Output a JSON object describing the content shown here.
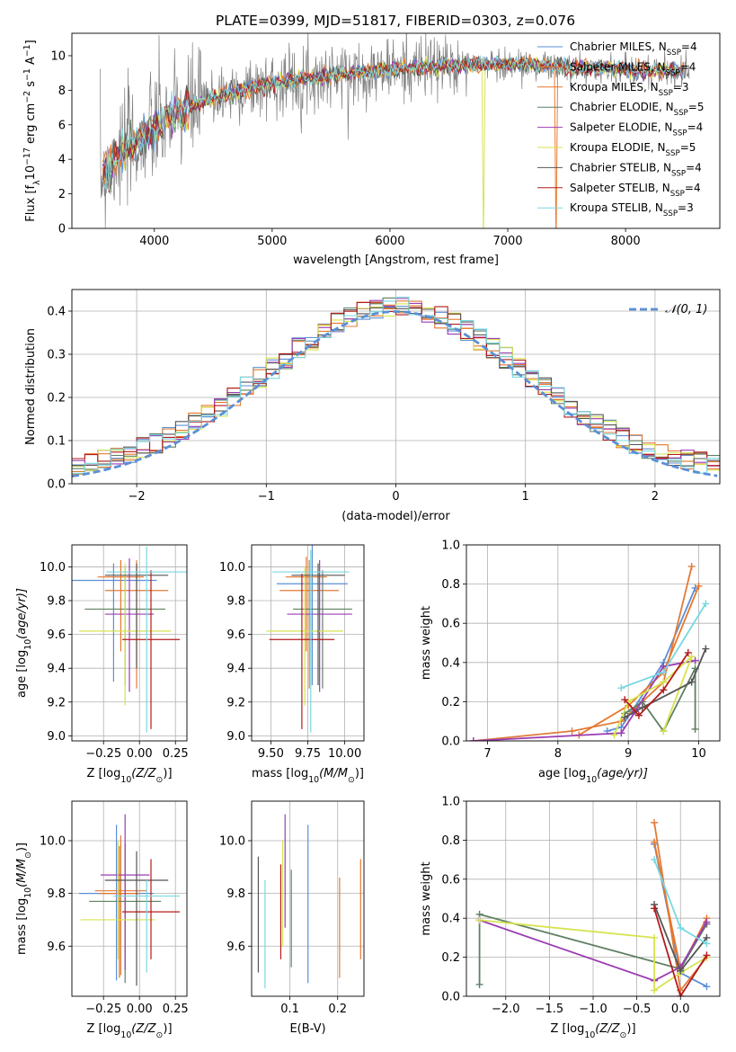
{
  "figure": {
    "title": "PLATE=0399, MJD=51817, FIBERID=0303, z=0.076"
  },
  "models": [
    {
      "label": "Chabrier MILES, N",
      "sub": "SSP",
      "n": "=4",
      "color": "#5b8fd6"
    },
    {
      "label": "Salpeter MILES, N",
      "sub": "SSP",
      "n": "=4",
      "color": "#e07b39"
    },
    {
      "label": "Kroupa MILES, N",
      "sub": "SSP",
      "n": "=3",
      "color": "#e7762a"
    },
    {
      "label": "Chabrier ELODIE, N",
      "sub": "SSP",
      "n": "=5",
      "color": "#5f8062"
    },
    {
      "label": "Salpeter ELODIE, N",
      "sub": "SSP",
      "n": "=4",
      "color": "#9b3db3"
    },
    {
      "label": "Kroupa ELODIE, N",
      "sub": "SSP",
      "n": "=5",
      "color": "#d7e34f"
    },
    {
      "label": "Chabrier STELIB, N",
      "sub": "SSP",
      "n": "=4",
      "color": "#555555"
    },
    {
      "label": "Salpeter STELIB, N",
      "sub": "SSP",
      "n": "=4",
      "color": "#b31b1b"
    },
    {
      "label": "Kroupa STELIB, N",
      "sub": "SSP",
      "n": "=3",
      "color": "#78d8e0"
    }
  ],
  "chart_data": [
    {
      "type": "line",
      "panel": "spectrum",
      "xlabel": "wavelength [Angstrom, rest frame]",
      "ylabel_parts": [
        "Flux [f",
        "λ",
        "10",
        "−17",
        " erg cm",
        "−2",
        " s",
        "−1",
        " A",
        "−1",
        "]"
      ],
      "xlim": [
        3300,
        8800
      ],
      "ylim": [
        0,
        11.3
      ],
      "xticks": [
        4000,
        5000,
        6000,
        7000,
        8000
      ],
      "yticks": [
        0,
        2,
        4,
        6,
        8,
        10
      ],
      "continuum": {
        "x": [
          3550,
          3700,
          3900,
          4100,
          4300,
          4500,
          4800,
          5000,
          5300,
          5600,
          6000,
          6300,
          6600,
          7000,
          7200,
          7400,
          7600,
          7800,
          8000,
          8200,
          8500
        ],
        "y": [
          3.0,
          4.3,
          5.2,
          6.2,
          7.0,
          7.6,
          8.1,
          8.4,
          8.7,
          8.95,
          9.2,
          9.35,
          9.45,
          9.5,
          9.5,
          9.35,
          9.3,
          9.25,
          9.2,
          9.15,
          9.1
        ]
      },
      "data_color": "#808080"
    },
    {
      "type": "bar",
      "panel": "residual histogram",
      "xlabel": "(data-model)/error",
      "ylabel": "Normed distribution",
      "xlim": [
        -2.5,
        2.5
      ],
      "ylim": [
        0,
        0.45
      ],
      "xticks": [
        -2,
        -1,
        0,
        1,
        2
      ],
      "yticks": [
        0.0,
        0.1,
        0.2,
        0.3,
        0.4
      ],
      "bin_width": 0.1,
      "reference": {
        "name": "𝒩(0, 1)",
        "color": "#5b8fd6",
        "mean": 0,
        "sigma": 1
      }
    },
    {
      "type": "scatter",
      "panel": "age vs Z",
      "xlabel_parts": [
        "Z [log",
        "10",
        "(Z/Z",
        "⊙",
        ")]"
      ],
      "ylabel_parts": [
        "age  [log",
        "10",
        "(age/yr)]"
      ],
      "xlim": [
        -0.47,
        0.33
      ],
      "ylim": [
        8.97,
        10.13
      ],
      "xticks": [
        -0.25,
        0.0,
        0.25
      ],
      "yticks": [
        9.0,
        9.2,
        9.4,
        9.6,
        9.8,
        10.0
      ],
      "points": [
        {
          "x": -0.18,
          "xerr": 0.3,
          "y": 9.92,
          "ylo": 9.32,
          "yhi": 10.02,
          "model": 0
        },
        {
          "x": -0.02,
          "xerr": 0.22,
          "y": 9.86,
          "ylo": 9.28,
          "yhi": 10.04,
          "model": 1
        },
        {
          "x": -0.13,
          "xerr": 0.16,
          "y": 9.94,
          "ylo": 9.5,
          "yhi": 10.04,
          "model": 2
        },
        {
          "x": -0.1,
          "xerr": 0.28,
          "y": 9.75,
          "ylo": 9.3,
          "yhi": 10.0,
          "model": 3
        },
        {
          "x": -0.07,
          "xerr": 0.17,
          "y": 9.72,
          "ylo": 9.26,
          "yhi": 10.05,
          "model": 4
        },
        {
          "x": -0.1,
          "xerr": 0.32,
          "y": 9.62,
          "ylo": 9.18,
          "yhi": 10.02,
          "model": 5
        },
        {
          "x": -0.02,
          "xerr": 0.22,
          "y": 9.95,
          "ylo": 9.4,
          "yhi": 10.02,
          "model": 6
        },
        {
          "x": 0.08,
          "xerr": 0.2,
          "y": 9.57,
          "ylo": 9.04,
          "yhi": 9.98,
          "model": 7
        },
        {
          "x": 0.05,
          "xerr": 0.28,
          "y": 9.97,
          "ylo": 9.02,
          "yhi": 10.12,
          "model": 8
        }
      ]
    },
    {
      "type": "scatter",
      "panel": "age vs mass",
      "xlabel_parts": [
        "mass [log",
        "10",
        "(M/M",
        "⊙",
        ")]"
      ],
      "xlim": [
        9.37,
        10.13
      ],
      "ylim": [
        8.97,
        10.13
      ],
      "xticks": [
        9.5,
        9.75,
        10.0
      ],
      "yticks": [
        9.0,
        9.2,
        9.4,
        9.6,
        9.8,
        10.0
      ],
      "points": [
        {
          "x": 9.78,
          "xerr": 0.24,
          "y": 9.9,
          "ylo": 9.3,
          "yhi": 10.14,
          "model": 0
        },
        {
          "x": 9.76,
          "xerr": 0.2,
          "y": 9.86,
          "ylo": 9.28,
          "yhi": 10.04,
          "model": 1
        },
        {
          "x": 9.74,
          "xerr": 0.14,
          "y": 9.94,
          "ylo": 9.5,
          "yhi": 10.06,
          "model": 2
        },
        {
          "x": 9.85,
          "xerr": 0.2,
          "y": 9.75,
          "ylo": 9.28,
          "yhi": 9.98,
          "model": 3
        },
        {
          "x": 9.83,
          "xerr": 0.22,
          "y": 9.72,
          "ylo": 9.26,
          "yhi": 10.04,
          "model": 4
        },
        {
          "x": 9.73,
          "xerr": 0.26,
          "y": 9.62,
          "ylo": 9.18,
          "yhi": 10.0,
          "model": 5
        },
        {
          "x": 9.82,
          "xerr": 0.18,
          "y": 9.95,
          "ylo": 9.3,
          "yhi": 10.02,
          "model": 6
        },
        {
          "x": 9.71,
          "xerr": 0.22,
          "y": 9.57,
          "ylo": 9.04,
          "yhi": 9.96,
          "model": 7
        },
        {
          "x": 9.77,
          "xerr": 0.26,
          "y": 9.97,
          "ylo": 9.02,
          "yhi": 10.1,
          "model": 8
        }
      ]
    },
    {
      "type": "line",
      "panel": "mass weight vs age",
      "xlabel_parts": [
        "age  [log",
        "10",
        "(age/yr)]"
      ],
      "ylabel": "mass weight",
      "xlim": [
        6.7,
        10.3
      ],
      "ylim": [
        0,
        1.0
      ],
      "xticks": [
        7,
        8,
        9,
        10
      ],
      "yticks": [
        0.0,
        0.2,
        0.4,
        0.6,
        0.8,
        1.0
      ],
      "series": [
        {
          "model": 0,
          "x": [
            8.7,
            8.9,
            9.05,
            9.5,
            9.95
          ],
          "y": [
            0.05,
            0.07,
            0.15,
            0.4,
            0.78
          ]
        },
        {
          "model": 1,
          "x": [
            6.8,
            8.2,
            8.9,
            9.5,
            9.9
          ],
          "y": [
            0.0,
            0.05,
            0.1,
            0.3,
            0.89
          ]
        },
        {
          "model": 2,
          "x": [
            8.3,
            9.0,
            9.5,
            10.0
          ],
          "y": [
            0.03,
            0.18,
            0.35,
            0.79
          ]
        },
        {
          "model": 3,
          "x": [
            8.95,
            9.2,
            9.5,
            9.95,
            9.95
          ],
          "y": [
            0.14,
            0.2,
            0.05,
            0.37,
            0.06
          ]
        },
        {
          "model": 4,
          "x": [
            6.8,
            8.9,
            9.1,
            9.5,
            9.95
          ],
          "y": [
            0.0,
            0.04,
            0.15,
            0.38,
            0.41
          ]
        },
        {
          "model": 5,
          "x": [
            8.8,
            9.0,
            9.5,
            9.9,
            9.5
          ],
          "y": [
            0.03,
            0.2,
            0.3,
            0.43,
            0.05
          ]
        },
        {
          "model": 6,
          "x": [
            8.95,
            9.2,
            9.9,
            10.1
          ],
          "y": [
            0.12,
            0.17,
            0.3,
            0.47
          ]
        },
        {
          "model": 7,
          "x": [
            8.95,
            9.15,
            9.5,
            9.85
          ],
          "y": [
            0.21,
            0.13,
            0.26,
            0.45
          ]
        },
        {
          "model": 8,
          "x": [
            8.9,
            9.5,
            10.1
          ],
          "y": [
            0.27,
            0.35,
            0.7
          ]
        }
      ]
    },
    {
      "type": "scatter",
      "panel": "mass vs Z",
      "xlabel_parts": [
        "Z [log",
        "10",
        "(Z/Z",
        "⊙",
        ")]"
      ],
      "ylabel_parts": [
        "mass [log",
        "10",
        "(M/M",
        "⊙",
        ")]"
      ],
      "xlim": [
        -0.47,
        0.33
      ],
      "ylim": [
        9.41,
        10.15
      ],
      "xticks": [
        -0.25,
        0.0,
        0.25
      ],
      "yticks": [
        9.6,
        9.8,
        10.0
      ],
      "points": [
        {
          "x": -0.16,
          "xerr": 0.26,
          "y": 9.8,
          "ylo": 9.47,
          "yhi": 10.06,
          "model": 0
        },
        {
          "x": -0.13,
          "xerr": 0.18,
          "y": 9.81,
          "ylo": 9.49,
          "yhi": 10.02,
          "model": 1
        },
        {
          "x": -0.14,
          "xerr": 0.14,
          "y": 9.8,
          "ylo": 9.48,
          "yhi": 9.98,
          "model": 2
        },
        {
          "x": -0.1,
          "xerr": 0.25,
          "y": 9.77,
          "ylo": 9.46,
          "yhi": 9.99,
          "model": 3
        },
        {
          "x": -0.1,
          "xerr": 0.17,
          "y": 9.87,
          "ylo": 9.51,
          "yhi": 10.1,
          "model": 4
        },
        {
          "x": -0.15,
          "xerr": 0.26,
          "y": 9.7,
          "ylo": 9.55,
          "yhi": 10.0,
          "model": 5
        },
        {
          "x": -0.02,
          "xerr": 0.22,
          "y": 9.85,
          "ylo": 9.45,
          "yhi": 9.96,
          "model": 6
        },
        {
          "x": 0.08,
          "xerr": 0.2,
          "y": 9.73,
          "ylo": 9.55,
          "yhi": 9.93,
          "model": 7
        },
        {
          "x": 0.05,
          "xerr": 0.23,
          "y": 9.79,
          "ylo": 9.5,
          "yhi": 9.85,
          "model": 8
        }
      ]
    },
    {
      "type": "scatter",
      "panel": "mass vs E(B-V)",
      "xlabel": "E(B-V)",
      "xlim": [
        0.02,
        0.255
      ],
      "ylim": [
        9.41,
        10.15
      ],
      "xticks": [
        0.1,
        0.2
      ],
      "yticks": [
        9.6,
        9.8,
        10.0
      ],
      "points": [
        {
          "x": 0.138,
          "ylo": 9.46,
          "yhi": 10.06,
          "model": 0
        },
        {
          "x": 0.204,
          "ylo": 9.48,
          "yhi": 9.86,
          "model": 1
        },
        {
          "x": 0.248,
          "ylo": 9.55,
          "yhi": 9.93,
          "model": 2
        },
        {
          "x": 0.103,
          "ylo": 9.52,
          "yhi": 9.89,
          "model": 3
        },
        {
          "x": 0.09,
          "ylo": 9.67,
          "yhi": 10.1,
          "model": 4
        },
        {
          "x": 0.085,
          "ylo": 9.6,
          "yhi": 10.0,
          "model": 5
        },
        {
          "x": 0.034,
          "ylo": 9.5,
          "yhi": 9.94,
          "model": 6
        },
        {
          "x": 0.081,
          "ylo": 9.55,
          "yhi": 9.91,
          "model": 7
        },
        {
          "x": 0.048,
          "ylo": 9.44,
          "yhi": 9.85,
          "model": 8
        }
      ]
    },
    {
      "type": "line",
      "panel": "mass weight vs Z",
      "xlabel_parts": [
        "Z [log",
        "10",
        "(Z/Z",
        "⊙",
        ")]"
      ],
      "ylabel": "mass weight",
      "xlim": [
        -2.45,
        0.45
      ],
      "ylim": [
        0,
        1.0
      ],
      "xticks": [
        -2.0,
        -1.5,
        -1.0,
        -0.5,
        0.0
      ],
      "yticks": [
        0.0,
        0.2,
        0.4,
        0.6,
        0.8,
        1.0
      ],
      "series": [
        {
          "model": 0,
          "x": [
            -0.3,
            0.0,
            0.3
          ],
          "y": [
            0.78,
            0.12,
            0.05
          ]
        },
        {
          "model": 1,
          "x": [
            -0.3,
            0.0,
            0.3
          ],
          "y": [
            0.89,
            0.03,
            0.2
          ]
        },
        {
          "model": 2,
          "x": [
            -0.3,
            0.0,
            0.3
          ],
          "y": [
            0.79,
            0.14,
            0.4
          ]
        },
        {
          "model": 3,
          "x": [
            -2.3,
            -2.3,
            0.0,
            0.3
          ],
          "y": [
            0.06,
            0.42,
            0.14,
            0.37
          ]
        },
        {
          "model": 4,
          "x": [
            -2.3,
            -0.3,
            0.0,
            0.3
          ],
          "y": [
            0.39,
            0.08,
            0.15,
            0.38
          ]
        },
        {
          "model": 5,
          "x": [
            -2.3,
            -0.3,
            -0.3,
            0.0,
            0.3
          ],
          "y": [
            0.39,
            0.3,
            0.03,
            0.12,
            0.2
          ]
        },
        {
          "model": 6,
          "x": [
            -0.3,
            0.0,
            0.3
          ],
          "y": [
            0.47,
            0.13,
            0.3
          ]
        },
        {
          "model": 7,
          "x": [
            -0.3,
            0.0,
            0.3
          ],
          "y": [
            0.45,
            0.0,
            0.21
          ]
        },
        {
          "model": 8,
          "x": [
            -0.3,
            0.0,
            0.3
          ],
          "y": [
            0.7,
            0.35,
            0.27
          ]
        }
      ]
    }
  ]
}
